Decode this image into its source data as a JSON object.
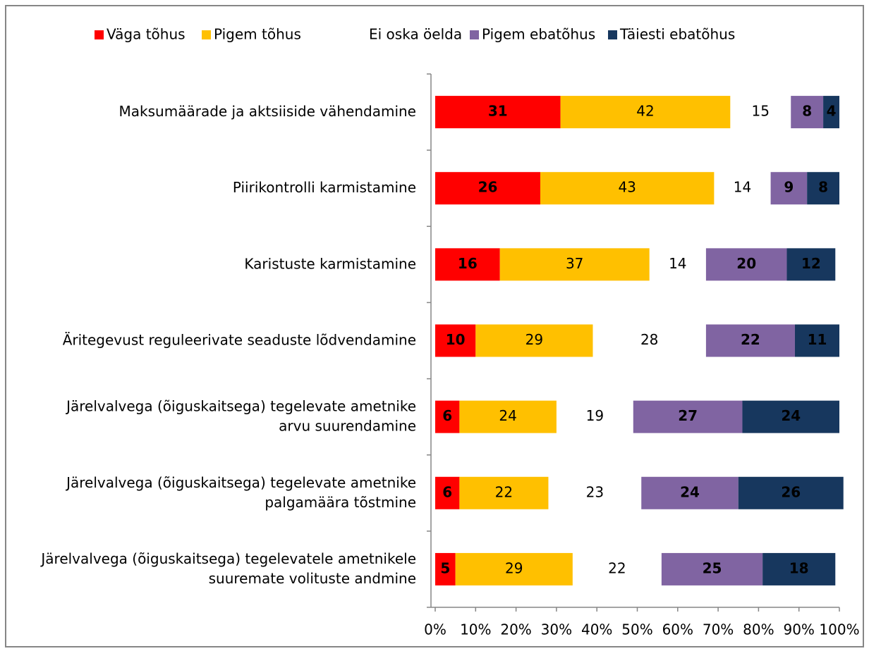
{
  "chart_data": {
    "type": "stacked-bar-horizontal",
    "categories": [
      "Maksumäärade ja aktsiiside vähendamine",
      "Piirikontrolli karmistamine",
      "Karistuste karmistamine",
      "Äritegevust reguleerivate seaduste lõdvendamine",
      "Järelvalvega (õiguskaitsega) tegelevate ametnike\narvu suurendamine",
      "Järelvalvega (õiguskaitsega) tegelevate ametnike\npalgamäära tõstmine",
      "Järelvalvega (õiguskaitsega) tegelevatele ametnikele\nsuuremate volituste andmine"
    ],
    "series": [
      {
        "name": "Väga tõhus",
        "color": "#ff0000",
        "label_color": "#ffffff",
        "values": [
          31,
          26,
          16,
          10,
          6,
          6,
          5
        ]
      },
      {
        "name": "Pigem tõhus",
        "color": "#ffc000",
        "label_color": "#000000",
        "values": [
          42,
          43,
          37,
          29,
          24,
          22,
          29
        ]
      },
      {
        "name": "Ei oska öelda",
        "color": "none",
        "label_color": "#000000",
        "values": [
          15,
          14,
          14,
          28,
          19,
          23,
          22
        ]
      },
      {
        "name": "Pigem ebatõhus",
        "color": "#8064a2",
        "label_color": "#ffffff",
        "values": [
          8,
          9,
          20,
          22,
          27,
          24,
          25
        ]
      },
      {
        "name": "Täiesti ebatõhus",
        "color": "#17375e",
        "label_color": "#ffffff",
        "values": [
          4,
          8,
          12,
          11,
          24,
          26,
          18
        ]
      }
    ],
    "xlim": [
      0,
      100
    ],
    "xticks": [
      {
        "value": 0,
        "label": "0%"
      },
      {
        "value": 10,
        "label": "10%"
      },
      {
        "value": 20,
        "label": "20%"
      },
      {
        "value": 30,
        "label": "30%"
      },
      {
        "value": 40,
        "label": "40%"
      },
      {
        "value": 50,
        "label": "50%"
      },
      {
        "value": 60,
        "label": "60%"
      },
      {
        "value": 70,
        "label": "70%"
      },
      {
        "value": 80,
        "label": "80%"
      },
      {
        "value": 90,
        "label": "90%"
      },
      {
        "value": 100,
        "label": "100%"
      }
    ],
    "legend": "top"
  }
}
